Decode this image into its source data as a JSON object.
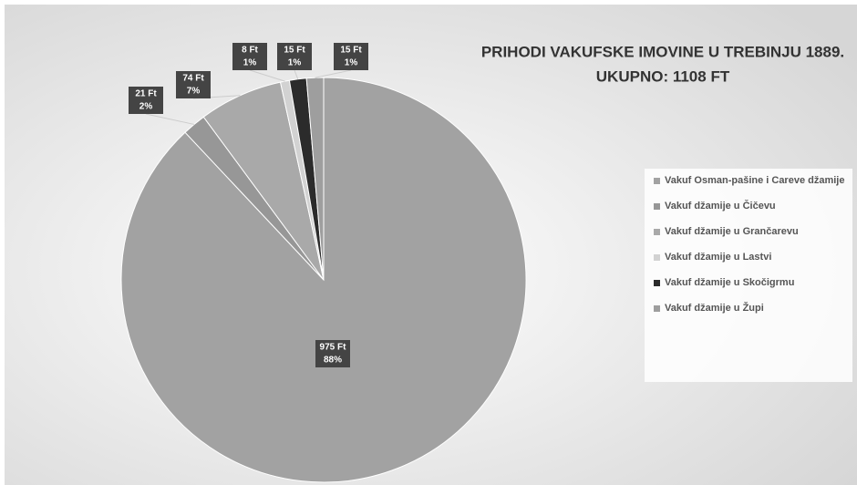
{
  "chart_data": {
    "type": "pie",
    "title": "PRIHODI VAKUFSKE IMOVINE U TREBINJU 1889.",
    "subtitle": "UKUPNO: 1108 FT",
    "categories": [
      "Vakuf Osman-pašine i Careve džamije",
      "Vakuf džamije u Čičevu",
      "Vakuf džamije u Grančarevu",
      "Vakuf džamije u Lastvi",
      "Vakuf džamije u Skočigrmu",
      "Vakuf džamije u Župi"
    ],
    "values": [
      975,
      21,
      74,
      8,
      15,
      15
    ],
    "value_labels": [
      "975 Ft",
      "21 Ft",
      "74 Ft",
      "8 Ft",
      "15 Ft",
      "15 Ft"
    ],
    "percents": [
      88,
      2,
      7,
      1,
      1,
      1
    ],
    "percent_labels": [
      "88%",
      "2%",
      "7%",
      "1%",
      "1%",
      "1%"
    ],
    "colors": [
      "#a2a2a2",
      "#979797",
      "#a9a9a9",
      "#d2d2d2",
      "#2b2b2b",
      "#9e9e9e"
    ],
    "legend": "right"
  }
}
